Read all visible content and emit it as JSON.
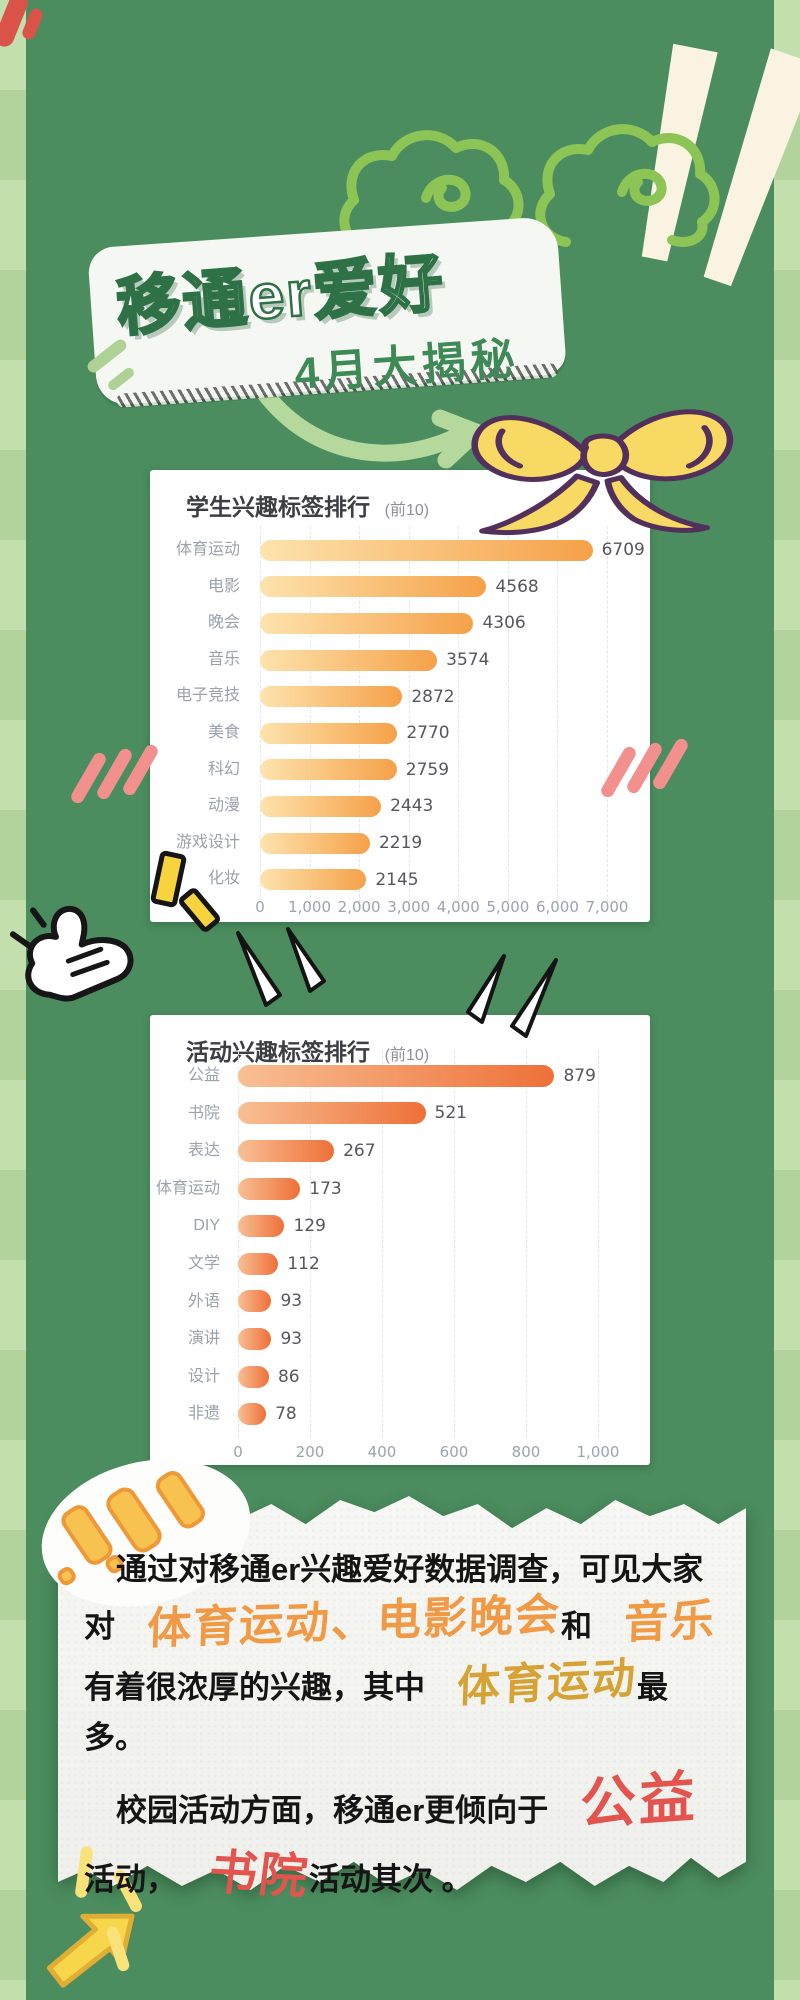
{
  "poster": {
    "title": "移通er爱好",
    "subtitle": "4月大揭秘"
  },
  "chart_data": [
    {
      "type": "bar",
      "orientation": "horizontal",
      "title": "学生兴趣标签排行",
      "subtitle": "(前10)",
      "categories": [
        "体育运动",
        "电影",
        "晚会",
        "音乐",
        "电子竞技",
        "美食",
        "科幻",
        "动漫",
        "游戏设计",
        "化妆"
      ],
      "values": [
        6709,
        4568,
        4306,
        3574,
        2872,
        2770,
        2759,
        2443,
        2219,
        2145
      ],
      "xlim": [
        0,
        7000
      ],
      "xticks": [
        "0",
        "1,000",
        "2,000",
        "3,000",
        "4,000",
        "5,000",
        "6,000",
        "7,000"
      ],
      "grid": "dashed-vertical",
      "bar_color_start": "#fde3ad",
      "bar_color_end": "#f5a149"
    },
    {
      "type": "bar",
      "orientation": "horizontal",
      "title": "活动兴趣标签排行",
      "subtitle": "(前10)",
      "categories": [
        "公益",
        "书院",
        "表达",
        "体育运动",
        "DIY",
        "文学",
        "外语",
        "演讲",
        "设计",
        "非遗"
      ],
      "values": [
        879,
        521,
        267,
        173,
        129,
        112,
        93,
        93,
        86,
        78
      ],
      "xlim": [
        0,
        1000
      ],
      "xticks": [
        "0",
        "200",
        "400",
        "600",
        "800",
        "1,000"
      ],
      "grid": "dashed-vertical",
      "bar_color_start": "#f8bf94",
      "bar_color_end": "#ee7038"
    }
  ],
  "summary": {
    "paragraphs": [
      {
        "segments": [
          {
            "text": "通过对移通er兴趣爱好数据调查，可见大家对",
            "style": "plain"
          },
          {
            "text": "体育运动、电影晚会",
            "style": "orange"
          },
          {
            "text": "和",
            "style": "plain"
          },
          {
            "text": "音乐",
            "style": "orange"
          },
          {
            "text": "有着很浓厚的兴趣，其中",
            "style": "plain"
          },
          {
            "text": "体育运动",
            "style": "gold"
          },
          {
            "text": "最多。",
            "style": "plain"
          }
        ]
      },
      {
        "segments": [
          {
            "text": "校园活动方面，移通er更倾向于",
            "style": "plain"
          },
          {
            "text": "公益",
            "style": "red-large"
          },
          {
            "text": "活动，",
            "style": "plain"
          },
          {
            "text": "书院",
            "style": "red"
          },
          {
            "text": "活动其次 。",
            "style": "plain"
          }
        ]
      }
    ]
  },
  "colors": {
    "background_green": "#4b8d5e",
    "side_border_green": "#bfdcaa",
    "doodle_green": "#8cc455",
    "bow_yellow": "#f8d964",
    "highlight_orange": "#f09a45",
    "highlight_gold": "#d5a233",
    "highlight_red": "#e2544d",
    "pink_slash": "#f2908d"
  }
}
